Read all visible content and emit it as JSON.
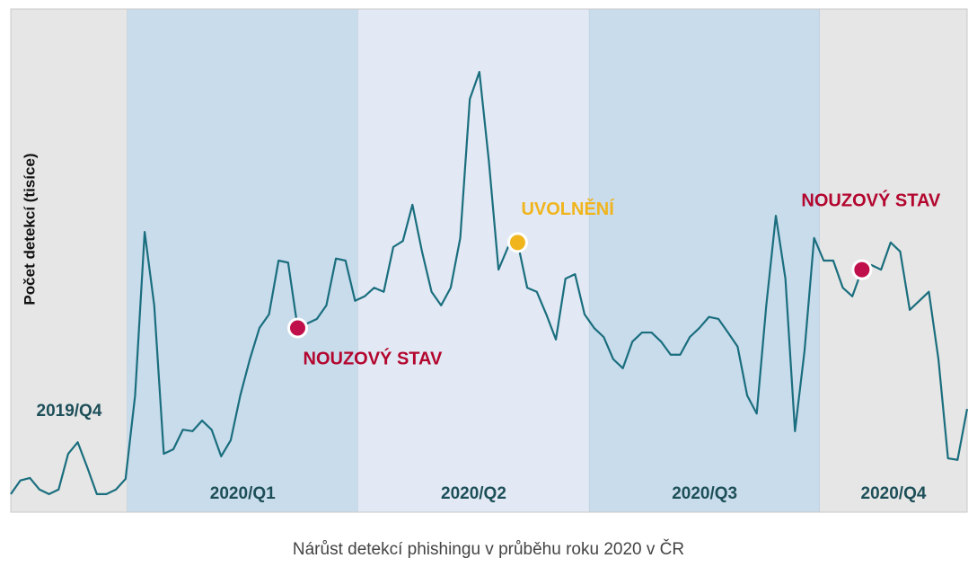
{
  "chart_data": {
    "type": "line",
    "y_label": "Počet detekcí (tisíce)",
    "caption": "Nárůst detekcí phishingu v průběhu roku 2020 v ČR",
    "xlim": [
      0,
      100
    ],
    "ylim": [
      0,
      100
    ],
    "series": [
      {
        "name": null,
        "color": "#1a6e7e",
        "values": [
          3.6,
          6.3,
          6.8,
          4.5,
          3.6,
          4.5,
          11.6,
          13.9,
          8.9,
          3.6,
          3.6,
          4.5,
          6.6,
          23.2,
          55.7,
          41.1,
          11.6,
          12.5,
          16.4,
          16.1,
          18.2,
          16.4,
          11.1,
          14.3,
          23.2,
          30.4,
          36.6,
          39.3,
          50.0,
          49.6,
          36.6,
          37.5,
          38.4,
          41.1,
          50.4,
          50.0,
          42.0,
          42.9,
          44.6,
          43.8,
          52.7,
          53.9,
          61.1,
          51.8,
          43.8,
          41.1,
          44.6,
          54.5,
          82.1,
          87.5,
          69.6,
          48.2,
          52.7,
          53.6,
          44.6,
          43.8,
          39.3,
          34.3,
          46.4,
          47.3,
          39.3,
          36.6,
          34.8,
          30.4,
          28.6,
          33.9,
          35.7,
          35.7,
          33.9,
          31.3,
          31.3,
          34.8,
          36.6,
          38.8,
          38.4,
          35.7,
          32.9,
          23.2,
          19.6,
          41.1,
          58.9,
          46.4,
          16.1,
          32.1,
          54.5,
          50.0,
          50.0,
          44.6,
          42.9,
          48.2,
          49.1,
          48.2,
          53.6,
          51.8,
          40.2,
          42.0,
          43.8,
          30.4,
          10.7,
          10.4,
          20.5
        ]
      }
    ],
    "regions": [
      {
        "label": "2019/Q4",
        "start": 0,
        "end": 12.2,
        "color": "#e6e6e6",
        "label_pos": "middle"
      },
      {
        "label": "2020/Q1",
        "start": 12.2,
        "end": 36.3,
        "color": "#c9dcec",
        "label_pos": "bottom"
      },
      {
        "label": "2020/Q2",
        "start": 36.3,
        "end": 60.5,
        "color": "#e2e9f4",
        "label_pos": "bottom"
      },
      {
        "label": "2020/Q3",
        "start": 60.5,
        "end": 84.6,
        "color": "#c9dcec",
        "label_pos": "bottom"
      },
      {
        "label": "2020/Q4",
        "start": 84.6,
        "end": 100,
        "color": "#e6e6e6",
        "label_pos": "bottom"
      }
    ],
    "annotations": [
      {
        "text": "NOUZOVÝ STAV",
        "index": 30,
        "color": "#b3062e",
        "dot": "#c0104c",
        "place": "below-right"
      },
      {
        "text": "UVOLNĚNÍ",
        "index": 53,
        "color": "#f0b41c",
        "dot": "#f0b41c",
        "place": "above-right"
      },
      {
        "text": "NOUZOVÝ STAV",
        "index": 89,
        "color": "#b3062e",
        "dot": "#c0104c",
        "place": "above"
      }
    ]
  }
}
